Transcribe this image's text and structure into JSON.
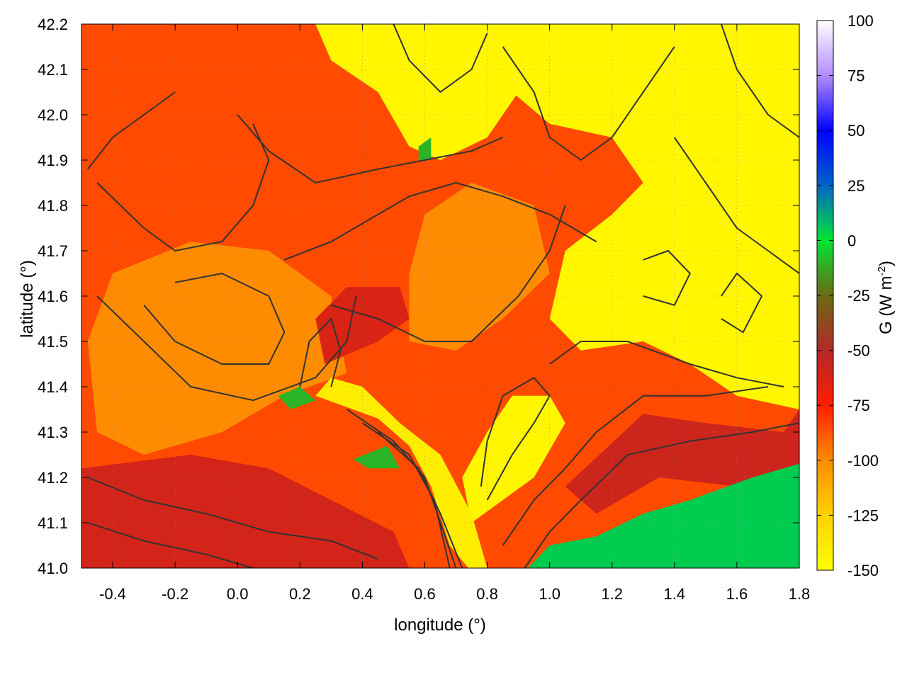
{
  "chart_data": {
    "type": "heatmap",
    "title": "",
    "xlabel": "longitude (°)",
    "ylabel": "latitude (°)",
    "colorbar_label": "G (W m⁻²)",
    "colorbar_label_base": "G (W m",
    "colorbar_label_exp": "-2",
    "colorbar_label_end": ")",
    "xlim": [
      -0.5,
      1.8
    ],
    "ylim": [
      41.0,
      42.2
    ],
    "x_ticks": [
      -0.4,
      -0.2,
      0.0,
      0.2,
      0.4,
      0.6,
      0.8,
      1.0,
      1.2,
      1.4,
      1.6,
      1.8
    ],
    "x_tick_labels": [
      "-0.4",
      "-0.2",
      "0.0",
      "0.2",
      "0.4",
      "0.6",
      "0.8",
      "1.0",
      "1.2",
      "1.4",
      "1.6",
      "1.8"
    ],
    "y_ticks": [
      41.0,
      41.1,
      41.2,
      41.3,
      41.4,
      41.5,
      41.6,
      41.7,
      41.8,
      41.9,
      42.0,
      42.1,
      42.2
    ],
    "y_tick_labels": [
      "41.0",
      "41.1",
      "41.2",
      "41.3",
      "41.4",
      "41.5",
      "41.6",
      "41.7",
      "41.8",
      "41.9",
      "42.0",
      "42.1",
      "42.2"
    ],
    "clim": [
      -150,
      100
    ],
    "colorbar_ticks": [
      100,
      75,
      50,
      25,
      0,
      -25,
      -50,
      -75,
      -100,
      -125,
      -150
    ],
    "colorbar_tick_labels": [
      "100",
      "75",
      "50",
      "25",
      "0",
      "-25",
      "-50",
      "-75",
      "-100",
      "-125",
      "-150"
    ],
    "colorscale": [
      {
        "value": -150,
        "color": "#ffff00"
      },
      {
        "value": -125,
        "color": "#ffd200"
      },
      {
        "value": -100,
        "color": "#ff8c00"
      },
      {
        "value": -75,
        "color": "#ff1e00"
      },
      {
        "value": -50,
        "color": "#b42828"
      },
      {
        "value": -25,
        "color": "#6b6b14"
      },
      {
        "value": 0,
        "color": "#00e632"
      },
      {
        "value": 25,
        "color": "#0064c8"
      },
      {
        "value": 50,
        "color": "#0000ff"
      },
      {
        "value": 75,
        "color": "#b48cff"
      },
      {
        "value": 100,
        "color": "#ffffff"
      }
    ],
    "grid": true,
    "regions": [
      {
        "name": "base-field",
        "value": -85,
        "poly": [
          [
            -0.5,
            41.0
          ],
          [
            1.8,
            41.0
          ],
          [
            1.8,
            42.2
          ],
          [
            -0.5,
            42.2
          ]
        ]
      },
      {
        "name": "west-plain",
        "value": -100,
        "poly": [
          [
            -0.45,
            41.3
          ],
          [
            -0.3,
            41.25
          ],
          [
            -0.05,
            41.3
          ],
          [
            0.15,
            41.38
          ],
          [
            0.35,
            41.43
          ],
          [
            0.3,
            41.6
          ],
          [
            0.1,
            41.7
          ],
          [
            -0.15,
            41.72
          ],
          [
            -0.4,
            41.65
          ],
          [
            -0.48,
            41.5
          ]
        ]
      },
      {
        "name": "central-plain",
        "value": -100,
        "poly": [
          [
            0.55,
            41.5
          ],
          [
            0.7,
            41.48
          ],
          [
            0.85,
            41.55
          ],
          [
            1.0,
            41.65
          ],
          [
            0.95,
            41.8
          ],
          [
            0.75,
            41.85
          ],
          [
            0.6,
            41.78
          ],
          [
            0.55,
            41.65
          ]
        ]
      },
      {
        "name": "southwest-dark",
        "value": -60,
        "poly": [
          [
            -0.5,
            41.0
          ],
          [
            0.55,
            41.0
          ],
          [
            0.5,
            41.08
          ],
          [
            0.3,
            41.15
          ],
          [
            0.1,
            41.22
          ],
          [
            -0.15,
            41.25
          ],
          [
            -0.5,
            41.22
          ]
        ]
      },
      {
        "name": "ebro-valley-dark",
        "value": -62,
        "poly": [
          [
            0.28,
            41.45
          ],
          [
            0.45,
            41.5
          ],
          [
            0.55,
            41.55
          ],
          [
            0.52,
            41.62
          ],
          [
            0.35,
            41.62
          ],
          [
            0.25,
            41.55
          ]
        ]
      },
      {
        "name": "southeast-dark",
        "value": -58,
        "poly": [
          [
            1.05,
            41.18
          ],
          [
            1.3,
            41.34
          ],
          [
            1.5,
            41.32
          ],
          [
            1.75,
            41.3
          ],
          [
            1.8,
            41.35
          ],
          [
            1.8,
            41.15
          ],
          [
            1.6,
            41.18
          ],
          [
            1.35,
            41.2
          ],
          [
            1.15,
            41.12
          ]
        ]
      },
      {
        "name": "northeast-yellow",
        "value": -145,
        "poly": [
          [
            0.8,
            42.2
          ],
          [
            1.8,
            42.2
          ],
          [
            1.8,
            41.35
          ],
          [
            1.6,
            41.38
          ],
          [
            1.45,
            41.45
          ],
          [
            1.3,
            41.5
          ],
          [
            1.1,
            41.48
          ],
          [
            1.0,
            41.55
          ],
          [
            1.05,
            41.7
          ],
          [
            1.2,
            41.78
          ],
          [
            1.3,
            41.85
          ],
          [
            1.2,
            41.95
          ],
          [
            1.0,
            41.98
          ],
          [
            0.88,
            42.05
          ]
        ]
      },
      {
        "name": "north-yellow",
        "value": -145,
        "poly": [
          [
            0.25,
            42.2
          ],
          [
            0.85,
            42.2
          ],
          [
            0.9,
            42.05
          ],
          [
            0.8,
            41.95
          ],
          [
            0.65,
            41.9
          ],
          [
            0.55,
            41.93
          ],
          [
            0.45,
            42.05
          ],
          [
            0.3,
            42.12
          ]
        ]
      },
      {
        "name": "mid-yellow-patch",
        "value": -145,
        "poly": [
          [
            0.75,
            41.1
          ],
          [
            0.95,
            41.2
          ],
          [
            1.05,
            41.32
          ],
          [
            1.0,
            41.38
          ],
          [
            0.88,
            41.38
          ],
          [
            0.8,
            41.3
          ],
          [
            0.72,
            41.2
          ]
        ]
      },
      {
        "name": "river-yellow-strip",
        "value": -140,
        "poly": [
          [
            0.25,
            41.38
          ],
          [
            0.45,
            41.33
          ],
          [
            0.55,
            41.27
          ],
          [
            0.62,
            41.18
          ],
          [
            0.68,
            41.05
          ],
          [
            0.74,
            41.0
          ],
          [
            0.8,
            41.0
          ],
          [
            0.75,
            41.12
          ],
          [
            0.65,
            41.25
          ],
          [
            0.52,
            41.32
          ],
          [
            0.4,
            41.4
          ],
          [
            0.3,
            41.42
          ]
        ]
      },
      {
        "name": "coast-sea",
        "value": 5,
        "poly": [
          [
            0.93,
            41.0
          ],
          [
            1.8,
            41.0
          ],
          [
            1.8,
            41.23
          ],
          [
            1.65,
            41.2
          ],
          [
            1.45,
            41.15
          ],
          [
            1.3,
            41.12
          ],
          [
            1.15,
            41.07
          ],
          [
            1.0,
            41.05
          ]
        ]
      },
      {
        "name": "green-patch-1",
        "value": -10,
        "poly": [
          [
            0.37,
            41.24
          ],
          [
            0.48,
            41.27
          ],
          [
            0.52,
            41.22
          ],
          [
            0.42,
            41.22
          ]
        ]
      },
      {
        "name": "green-patch-2",
        "value": -10,
        "poly": [
          [
            0.13,
            41.38
          ],
          [
            0.2,
            41.4
          ],
          [
            0.25,
            41.37
          ],
          [
            0.17,
            41.35
          ]
        ]
      },
      {
        "name": "green-patch-3",
        "value": -10,
        "poly": [
          [
            0.58,
            41.93
          ],
          [
            0.62,
            41.95
          ],
          [
            0.62,
            41.9
          ],
          [
            0.58,
            41.9
          ]
        ]
      }
    ],
    "contours": [
      [
        [
          -0.2,
          42.05
        ],
        [
          -0.3,
          42.0
        ],
        [
          -0.4,
          41.95
        ],
        [
          -0.48,
          41.88
        ]
      ],
      [
        [
          -0.45,
          41.6
        ],
        [
          -0.3,
          41.5
        ],
        [
          -0.15,
          41.4
        ],
        [
          0.05,
          41.37
        ],
        [
          0.25,
          41.42
        ],
        [
          0.35,
          41.5
        ],
        [
          0.38,
          41.6
        ]
      ],
      [
        [
          -0.48,
          41.2
        ],
        [
          -0.3,
          41.15
        ],
        [
          -0.1,
          41.12
        ],
        [
          0.1,
          41.08
        ],
        [
          0.3,
          41.06
        ],
        [
          0.45,
          41.02
        ]
      ],
      [
        [
          -0.48,
          41.1
        ],
        [
          -0.3,
          41.06
        ],
        [
          -0.1,
          41.03
        ],
        [
          0.05,
          41.0
        ]
      ],
      [
        [
          0.35,
          41.35
        ],
        [
          0.5,
          41.28
        ],
        [
          0.6,
          41.2
        ],
        [
          0.65,
          41.1
        ],
        [
          0.7,
          41.0
        ]
      ],
      [
        [
          0.4,
          41.32
        ],
        [
          0.55,
          41.25
        ],
        [
          0.63,
          41.15
        ],
        [
          0.68,
          41.0
        ]
      ],
      [
        [
          0.45,
          41.3
        ],
        [
          0.58,
          41.22
        ],
        [
          0.65,
          41.12
        ],
        [
          0.72,
          41.0
        ]
      ],
      [
        [
          0.3,
          41.58
        ],
        [
          0.45,
          41.55
        ],
        [
          0.6,
          41.5
        ],
        [
          0.75,
          41.5
        ],
        [
          0.9,
          41.6
        ],
        [
          1.0,
          41.7
        ],
        [
          1.05,
          41.8
        ]
      ],
      [
        [
          0.15,
          41.68
        ],
        [
          0.3,
          41.72
        ],
        [
          0.45,
          41.78
        ],
        [
          0.55,
          41.82
        ],
        [
          0.7,
          41.85
        ],
        [
          0.85,
          41.82
        ],
        [
          1.0,
          41.78
        ],
        [
          1.15,
          41.72
        ]
      ],
      [
        [
          0.0,
          42.0
        ],
        [
          0.1,
          41.92
        ],
        [
          0.25,
          41.85
        ],
        [
          0.45,
          41.88
        ],
        [
          0.6,
          41.9
        ],
        [
          0.75,
          41.92
        ],
        [
          0.85,
          41.95
        ]
      ],
      [
        [
          1.0,
          41.45
        ],
        [
          1.1,
          41.5
        ],
        [
          1.25,
          41.5
        ],
        [
          1.45,
          41.45
        ],
        [
          1.6,
          41.42
        ],
        [
          1.75,
          41.4
        ]
      ],
      [
        [
          0.85,
          41.05
        ],
        [
          0.95,
          41.15
        ],
        [
          1.05,
          41.22
        ],
        [
          1.15,
          41.3
        ],
        [
          1.3,
          41.38
        ],
        [
          1.5,
          41.38
        ],
        [
          1.7,
          41.4
        ]
      ],
      [
        [
          0.92,
          41.0
        ],
        [
          1.0,
          41.08
        ],
        [
          1.1,
          41.15
        ],
        [
          1.25,
          41.25
        ],
        [
          1.45,
          41.28
        ],
        [
          1.65,
          41.3
        ],
        [
          1.8,
          41.32
        ]
      ],
      [
        [
          0.8,
          41.15
        ],
        [
          0.88,
          41.25
        ],
        [
          0.95,
          41.32
        ],
        [
          1.0,
          41.38
        ],
        [
          0.95,
          41.42
        ],
        [
          0.85,
          41.38
        ],
        [
          0.8,
          41.28
        ],
        [
          0.78,
          41.18
        ]
      ],
      [
        [
          0.5,
          42.2
        ],
        [
          0.55,
          42.12
        ],
        [
          0.65,
          42.05
        ],
        [
          0.75,
          42.1
        ],
        [
          0.8,
          42.18
        ]
      ],
      [
        [
          0.85,
          42.15
        ],
        [
          0.95,
          42.05
        ],
        [
          1.0,
          41.95
        ],
        [
          1.1,
          41.9
        ],
        [
          1.2,
          41.95
        ],
        [
          1.3,
          42.05
        ],
        [
          1.4,
          42.15
        ]
      ],
      [
        [
          1.4,
          41.95
        ],
        [
          1.5,
          41.85
        ],
        [
          1.6,
          41.75
        ],
        [
          1.7,
          41.7
        ],
        [
          1.8,
          41.65
        ]
      ],
      [
        [
          1.55,
          42.2
        ],
        [
          1.6,
          42.1
        ],
        [
          1.7,
          42.0
        ],
        [
          1.8,
          41.95
        ]
      ],
      [
        [
          -0.45,
          41.85
        ],
        [
          -0.3,
          41.75
        ],
        [
          -0.2,
          41.7
        ],
        [
          -0.05,
          41.72
        ],
        [
          0.05,
          41.8
        ],
        [
          0.1,
          41.9
        ],
        [
          0.05,
          41.98
        ]
      ],
      [
        [
          -0.3,
          41.58
        ],
        [
          -0.2,
          41.5
        ],
        [
          -0.05,
          41.45
        ],
        [
          0.1,
          41.45
        ],
        [
          0.15,
          41.52
        ],
        [
          0.1,
          41.6
        ],
        [
          -0.05,
          41.65
        ],
        [
          -0.2,
          41.63
        ]
      ],
      [
        [
          0.2,
          41.4
        ],
        [
          0.23,
          41.5
        ],
        [
          0.3,
          41.55
        ],
        [
          0.33,
          41.48
        ],
        [
          0.3,
          41.4
        ]
      ],
      [
        [
          1.3,
          41.6
        ],
        [
          1.4,
          41.58
        ],
        [
          1.45,
          41.65
        ],
        [
          1.38,
          41.7
        ],
        [
          1.3,
          41.68
        ]
      ],
      [
        [
          1.55,
          41.55
        ],
        [
          1.62,
          41.52
        ],
        [
          1.68,
          41.6
        ],
        [
          1.6,
          41.65
        ],
        [
          1.55,
          41.6
        ]
      ]
    ]
  }
}
